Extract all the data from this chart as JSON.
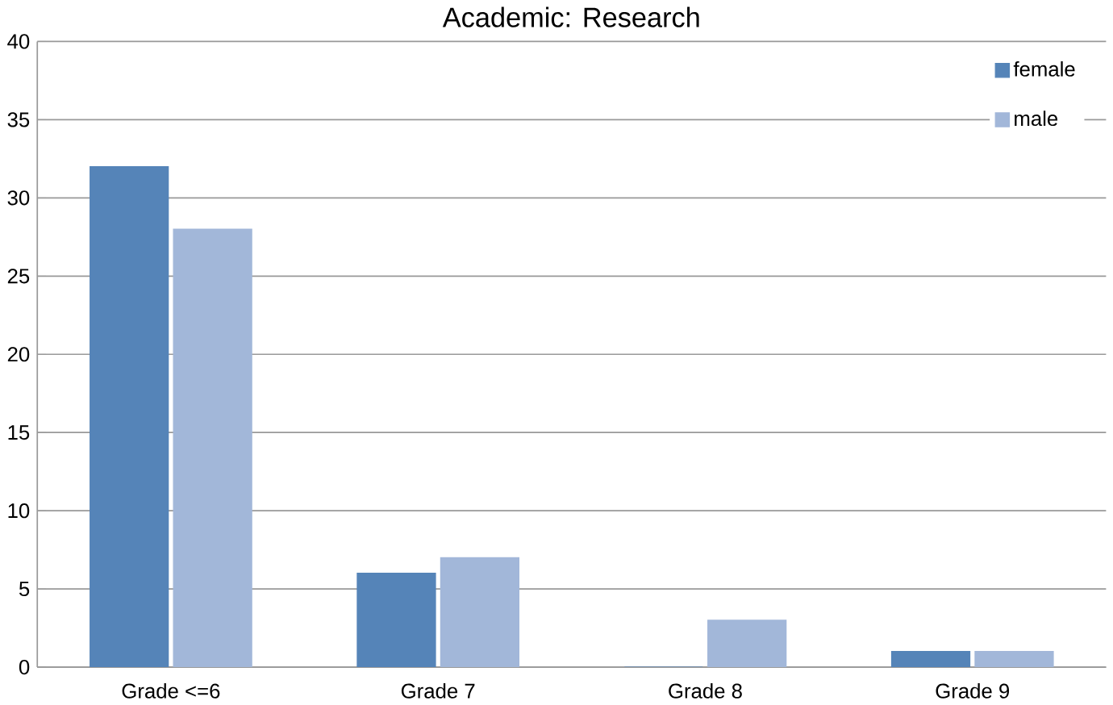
{
  "chart_data": {
    "type": "bar",
    "title": "Academic: Research",
    "categories": [
      "Grade <=6",
      "Grade 7",
      "Grade 8",
      "Grade 9"
    ],
    "series": [
      {
        "name": "female",
        "color": "#5584b8",
        "values": [
          32,
          6,
          0,
          1
        ]
      },
      {
        "name": "male",
        "color": "#a2b7d9",
        "values": [
          28,
          7,
          3,
          1
        ]
      }
    ],
    "ylim": [
      0,
      40
    ],
    "yticks": [
      0,
      5,
      10,
      15,
      20,
      25,
      30,
      35,
      40
    ],
    "grid": "y",
    "legend": "top right"
  }
}
